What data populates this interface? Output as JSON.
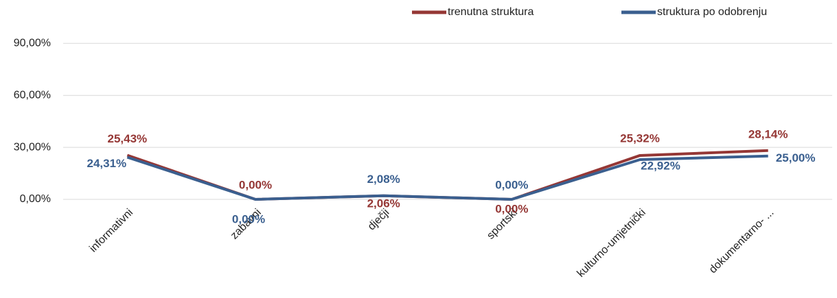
{
  "chart_data": {
    "type": "line",
    "categories": [
      "informativni",
      "zabavni",
      "dječji",
      "sportski",
      "kulturno-umjetnički",
      "dokumentarno- ..."
    ],
    "series": [
      {
        "name": "trenutna struktura",
        "color": "#953735",
        "values": [
          25.43,
          0,
          2.06,
          0,
          25.32,
          28.14
        ],
        "value_labels": [
          "25,43%",
          "0,00%",
          "2,06%",
          "0,00%",
          "25,32%",
          "28,14%"
        ]
      },
      {
        "name": "struktura po odobrenju",
        "color": "#3a5f8f",
        "values": [
          24.31,
          0,
          2.08,
          0,
          22.92,
          25.0
        ],
        "value_labels": [
          "24,31%",
          "0,00%",
          "2,08%",
          "0,00%",
          "22,92%",
          "25,00%"
        ]
      }
    ],
    "ylim": [
      0,
      100
    ],
    "yticks": [
      {
        "value": 0,
        "label": "0,00%"
      },
      {
        "value": 30,
        "label": "30,00%"
      },
      {
        "value": 60,
        "label": "60,00%"
      },
      {
        "value": 90,
        "label": "90,00%"
      }
    ],
    "grid": true,
    "legend": "top"
  }
}
